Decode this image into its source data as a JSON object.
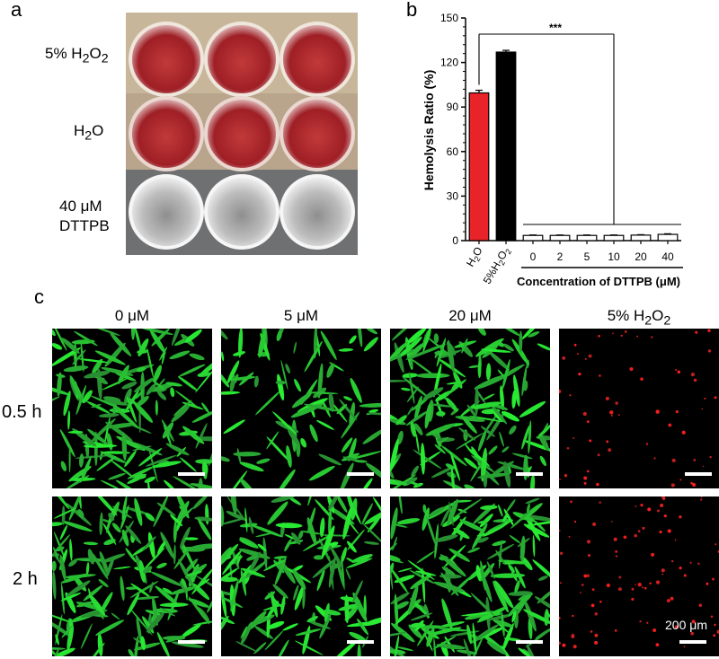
{
  "panels": {
    "a": "a",
    "b": "b",
    "c": "c"
  },
  "panel_a": {
    "row_labels": [
      "5% H2O2",
      "H2O",
      "40 μM",
      "DTTPB"
    ]
  },
  "chart_data": {
    "type": "bar",
    "ylabel": "Hemolysis Ratio (%)",
    "xlabel": "Concentration of DTTPB (μM)",
    "ylim": [
      0,
      150
    ],
    "yticks": [
      0,
      30,
      60,
      90,
      120,
      150
    ],
    "categories": [
      "H2O",
      "5%H2O2",
      "0",
      "2",
      "5",
      "10",
      "20",
      "40"
    ],
    "values": [
      99.5,
      127,
      3.5,
      3.5,
      3.5,
      3.5,
      3.7,
      4.2
    ],
    "errors": [
      1.8,
      1.2,
      0.3,
      0.3,
      0.3,
      0.3,
      0.3,
      0.4
    ],
    "colors": [
      "#e8242a",
      "#000000",
      "#ffffff",
      "#ffffff",
      "#ffffff",
      "#ffffff",
      "#ffffff",
      "#ffffff"
    ],
    "significance": "***"
  },
  "panel_c": {
    "columns": [
      "0 μM",
      "5 μM",
      "20 μM",
      "5% H2O2"
    ],
    "rows": [
      "0.5 h",
      "2 h"
    ],
    "scale_label": "200 μm"
  }
}
